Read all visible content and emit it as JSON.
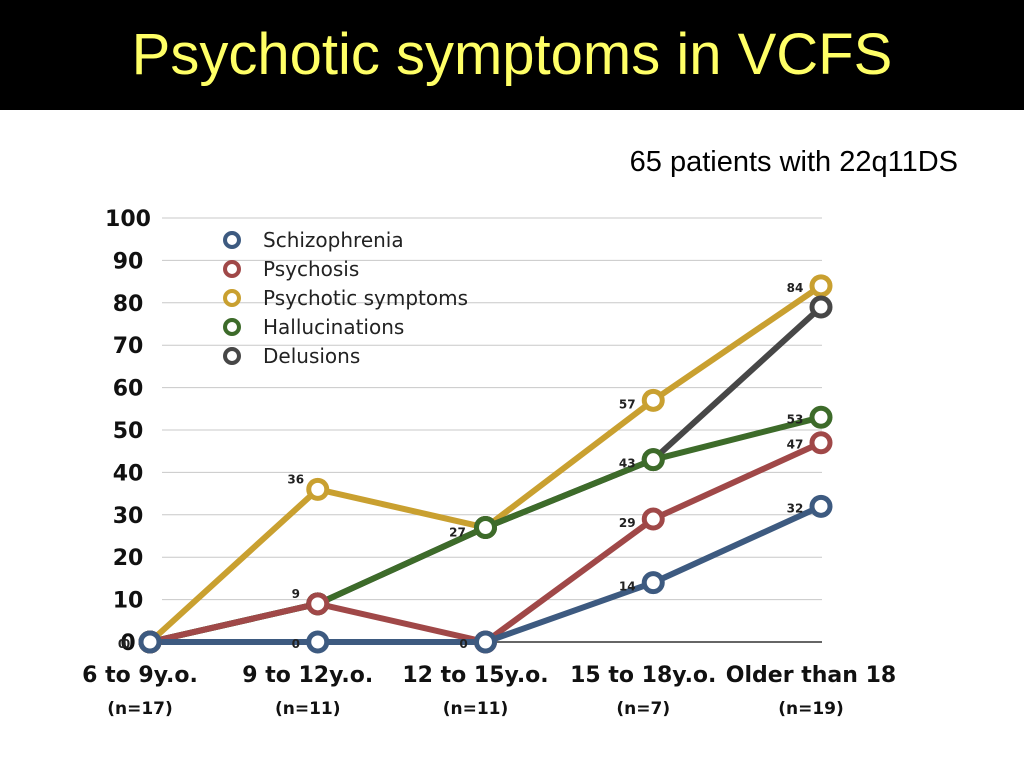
{
  "slide": {
    "title": "Psychotic symptoms in VCFS",
    "subtitle": "65 patients with 22q11DS"
  },
  "chart_data": {
    "type": "line",
    "categories": [
      "6 to 9y.o.",
      "9 to 12y.o.",
      "12 to 15y.o.",
      "15 to 18y.o.",
      "Older than 18"
    ],
    "category_sublabels": [
      "(n=17)",
      "(n=11)",
      "(n=11)",
      "(n=7)",
      "(n=19)"
    ],
    "ylim": [
      0,
      100
    ],
    "yticks": [
      0,
      10,
      20,
      30,
      40,
      50,
      60,
      70,
      80,
      90,
      100
    ],
    "grid": true,
    "legend_position": "top-left",
    "series": [
      {
        "name": "Schizophrenia",
        "color": "#3d5a80",
        "values": [
          0,
          0,
          0,
          14,
          32
        ]
      },
      {
        "name": "Psychosis",
        "color": "#a04848",
        "values": [
          0,
          9,
          0,
          29,
          47
        ]
      },
      {
        "name": "Psychotic symptoms",
        "color": "#c9a030",
        "values": [
          0,
          36,
          27,
          57,
          84
        ]
      },
      {
        "name": "Hallucinations",
        "color": "#3d6b2a",
        "values": [
          0,
          9,
          27,
          43,
          53
        ]
      },
      {
        "name": "Delusions",
        "color": "#474747",
        "values": [
          0,
          9,
          27,
          43,
          79
        ]
      }
    ],
    "data_labels": [
      {
        "category": 0,
        "value": 0,
        "text": "0"
      },
      {
        "category": 0,
        "value": 0,
        "text": "0"
      },
      {
        "category": 1,
        "value": 0,
        "text": "0"
      },
      {
        "category": 1,
        "value": 9,
        "text": "9"
      },
      {
        "category": 1,
        "value": 36,
        "text": "36"
      },
      {
        "category": 2,
        "value": 0,
        "text": "0"
      },
      {
        "category": 2,
        "value": 27,
        "text": "27"
      },
      {
        "category": 3,
        "value": 14,
        "text": "14"
      },
      {
        "category": 3,
        "value": 29,
        "text": "29"
      },
      {
        "category": 3,
        "value": 43,
        "text": "43"
      },
      {
        "category": 3,
        "value": 57,
        "text": "57"
      },
      {
        "category": 4,
        "value": 32,
        "text": "32"
      },
      {
        "category": 4,
        "value": 47,
        "text": "47"
      },
      {
        "category": 4,
        "value": 53,
        "text": "53"
      },
      {
        "category": 4,
        "value": 84,
        "text": "84"
      }
    ]
  }
}
